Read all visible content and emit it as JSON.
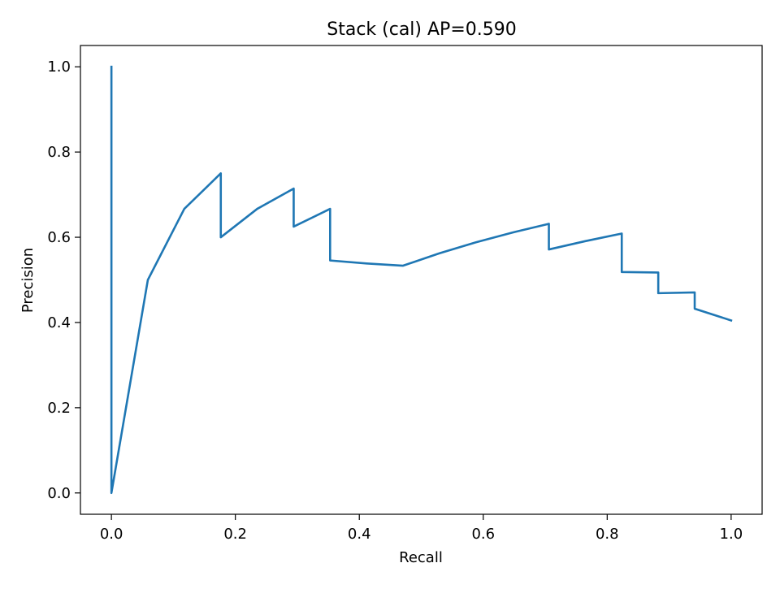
{
  "chart_data": {
    "type": "line",
    "title": "Stack (cal) AP=0.590",
    "xlabel": "Recall",
    "ylabel": "Precision",
    "xlim": [
      -0.05,
      1.05
    ],
    "ylim": [
      -0.05,
      1.05
    ],
    "xticks": [
      0.0,
      0.2,
      0.4,
      0.6,
      0.8,
      1.0
    ],
    "xtick_labels": [
      "0.0",
      "0.2",
      "0.4",
      "0.6",
      "0.8",
      "1.0"
    ],
    "yticks": [
      0.0,
      0.2,
      0.4,
      0.6,
      0.8,
      1.0
    ],
    "ytick_labels": [
      "0.0",
      "0.2",
      "0.4",
      "0.6",
      "0.8",
      "1.0"
    ],
    "grid": false,
    "legend": "none",
    "series": [
      {
        "color": "#1f77b4",
        "x": [
          0.0,
          0.0,
          0.0588,
          0.1176,
          0.1765,
          0.1765,
          0.2353,
          0.2941,
          0.2941,
          0.3529,
          0.3529,
          0.4118,
          0.4706,
          0.5294,
          0.5882,
          0.6471,
          0.7059,
          0.7059,
          0.7647,
          0.8235,
          0.8235,
          0.8824,
          0.8824,
          0.9412,
          0.9412,
          1.0
        ],
        "y": [
          1.0,
          0.0,
          0.5,
          0.6667,
          0.75,
          0.6,
          0.6667,
          0.7143,
          0.625,
          0.6667,
          0.5455,
          0.5385,
          0.5333,
          0.5625,
          0.5882,
          0.6111,
          0.6316,
          0.5714,
          0.5909,
          0.6087,
          0.5185,
          0.5172,
          0.4688,
          0.4706,
          0.4324,
          0.4048
        ]
      }
    ]
  }
}
